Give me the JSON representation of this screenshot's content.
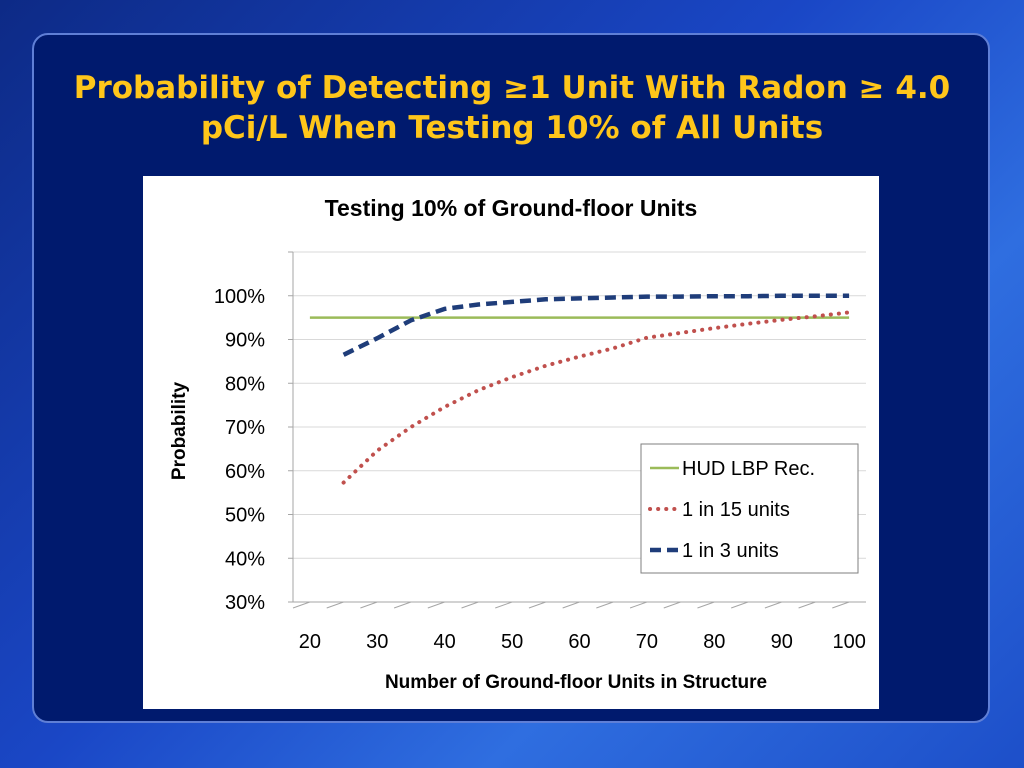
{
  "slide": {
    "title_line1": "Probability of Detecting ≥1 Unit With Radon ≥ 4.0",
    "title_line2": "pCi/L When Testing 10% of All Units"
  },
  "chart_data": {
    "type": "line",
    "title": "Testing 10% of Ground-floor Units",
    "xlabel": "Number of Ground-floor Units in Structure",
    "ylabel": "Probability",
    "xlim": [
      17.5,
      102.5
    ],
    "ylim": [
      30,
      110
    ],
    "x_ticks": [
      "20",
      "30",
      "40",
      "50",
      "60",
      "70",
      "80",
      "90",
      "100"
    ],
    "y_ticks": [
      "30%",
      "40%",
      "50%",
      "60%",
      "70%",
      "80%",
      "90%",
      "100%"
    ],
    "grid": true,
    "legend_position": "bottom-right",
    "series": [
      {
        "name": "HUD LBP Rec.",
        "style": "solid",
        "color": "#9bbb59",
        "x": [
          20,
          100
        ],
        "y": [
          95,
          95
        ]
      },
      {
        "name": "1 in 15 units",
        "style": "dotted",
        "color": "#c0504d",
        "x": [
          25,
          30,
          35,
          40,
          45,
          50,
          55,
          60,
          65,
          70,
          75,
          80,
          85,
          90,
          95,
          100
        ],
        "y": [
          57.3,
          64.6,
          70.0,
          74.6,
          78.4,
          81.4,
          84.0,
          86.1,
          88.0,
          90.4,
          91.5,
          92.6,
          93.6,
          94.5,
          95.3,
          96.2
        ]
      },
      {
        "name": "1 in 3 units",
        "style": "dashed",
        "color": "#1f3d7a",
        "x": [
          25,
          30,
          35,
          40,
          45,
          50,
          55,
          60,
          65,
          70,
          75,
          80,
          85,
          90,
          95,
          100
        ],
        "y": [
          86.5,
          90.3,
          94.4,
          97.0,
          98.0,
          98.6,
          99.2,
          99.4,
          99.6,
          99.8,
          99.8,
          99.9,
          99.9,
          100.0,
          100.0,
          100.0
        ]
      }
    ]
  }
}
